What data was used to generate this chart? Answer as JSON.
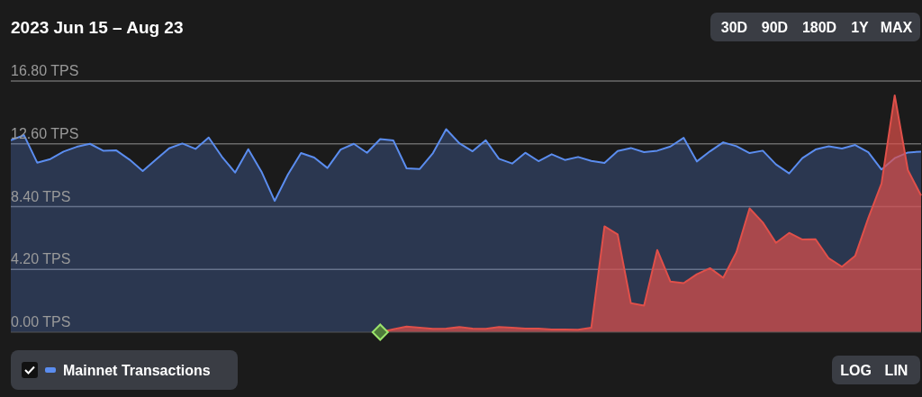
{
  "chart_data": {
    "type": "area",
    "title": "2023 Jun 15 – Aug 23",
    "categories": [
      null,
      null,
      null,
      null,
      null,
      null,
      null,
      null,
      null,
      null,
      null,
      null,
      null,
      null,
      null,
      null,
      null,
      null,
      null,
      null,
      null,
      null,
      null,
      null,
      null,
      null,
      null,
      null,
      null,
      null,
      null,
      null,
      null,
      null,
      null,
      null,
      null,
      null,
      null,
      null,
      null,
      null,
      null,
      null,
      null,
      null,
      null,
      null,
      null,
      null,
      null,
      null,
      null,
      null,
      null,
      null,
      null,
      null,
      null,
      null,
      null,
      null,
      null,
      null,
      null,
      null,
      null,
      null,
      null,
      null
    ],
    "series": [
      {
        "name": "Mainnet Transactions",
        "color": "#5b8def",
        "values": [
          12.84,
          13.18,
          11.34,
          11.58,
          12.08,
          12.4,
          12.6,
          12.14,
          12.16,
          11.54,
          10.78,
          11.54,
          12.3,
          12.62,
          12.26,
          13.02,
          11.74,
          10.68,
          12.24,
          10.74,
          8.78,
          10.54,
          11.98,
          11.68,
          10.98,
          12.22,
          12.6,
          12.0,
          12.92,
          12.82,
          10.96,
          10.92,
          11.98,
          13.58,
          12.64,
          12.1,
          12.84,
          11.6,
          11.28,
          12.0,
          11.44,
          11.9,
          11.52,
          11.72,
          11.46,
          11.32,
          12.12,
          12.32,
          12.04,
          12.14,
          12.42,
          13.0,
          11.42,
          12.1,
          12.7,
          12.44,
          11.98,
          12.14,
          11.22,
          10.62,
          11.64,
          12.22,
          12.44,
          12.28,
          12.52,
          12.04,
          10.88,
          11.64,
          12.02,
          12.08
        ]
      },
      {
        "color": "#e0504a",
        "values": [
          null,
          null,
          null,
          null,
          null,
          null,
          null,
          null,
          null,
          null,
          null,
          null,
          null,
          null,
          null,
          null,
          null,
          null,
          null,
          null,
          null,
          null,
          null,
          null,
          null,
          null,
          null,
          null,
          0,
          0.2,
          0.38,
          0.3,
          0.22,
          0.24,
          0.34,
          0.24,
          0.22,
          0.34,
          0.3,
          0.24,
          0.24,
          0.18,
          0.18,
          0.16,
          0.3,
          7.08,
          6.54,
          1.94,
          1.78,
          5.5,
          3.38,
          3.28,
          3.88,
          4.28,
          3.64,
          5.34,
          8.28,
          7.34,
          5.98,
          6.64,
          6.2,
          6.22,
          4.94,
          4.38,
          5.1,
          7.64,
          9.94,
          15.84,
          10.84,
          9.14
        ]
      }
    ],
    "ylim": [
      0,
      16.8
    ],
    "yticks": [
      {
        "value": 0,
        "label": "0.00 TPS"
      },
      {
        "value": 4.2,
        "label": "4.20 TPS"
      },
      {
        "value": 8.4,
        "label": "8.40 TPS"
      },
      {
        "value": 12.6,
        "label": "12.60 TPS"
      },
      {
        "value": 16.8,
        "label": "16.80 TPS"
      }
    ],
    "tick_labels": "y",
    "grid": "y",
    "legend": "bottom left",
    "annotations": [
      "30D",
      "90D",
      "180D",
      "1Y",
      "MAX",
      "LOG",
      "LIN"
    ]
  }
}
